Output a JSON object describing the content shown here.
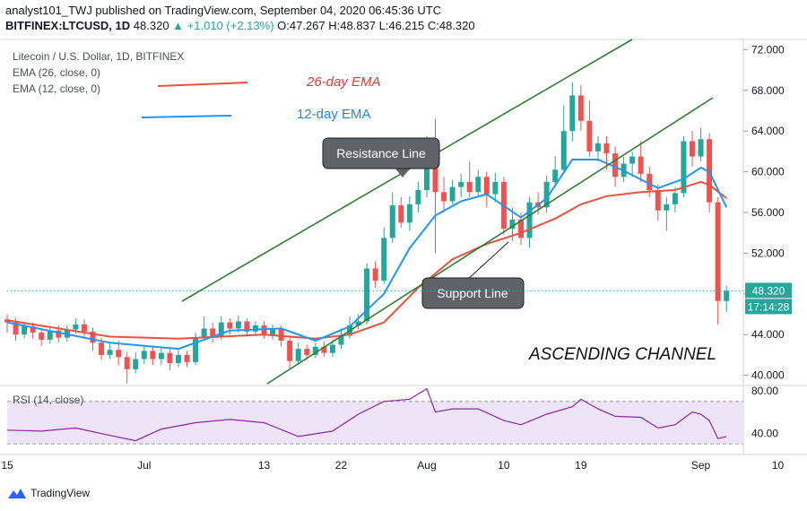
{
  "header": {
    "line1": "analyst101_TWJ published on TradingView.com, September 04, 2020 06:45:36 UTC",
    "symbol": "BITFINEX:LTCUSD, 1D",
    "last": "48.320",
    "change": "+1.010 (+2.13%)",
    "ohlc": "O:47.267 H:48.837 L:46.215 C:48.320"
  },
  "legend": {
    "pair": "Litecoin / U.S. Dollar, 1D, BITFINEX",
    "ema26": "EMA (26, close, 0)",
    "ema12": "EMA (12, close, 0)"
  },
  "annotations": {
    "ema26": "26-day EMA",
    "ema12": "12-day EMA",
    "resistance": "Resistance Line",
    "support": "Support Line",
    "channel": "ASCENDING CHANNEL"
  },
  "price_tag": "48.320",
  "countdown": "17:14:28",
  "rsi_label": "RSI (14, close)",
  "brand": "TradingView",
  "colors": {
    "up": "#26a69a",
    "down": "#ef5350",
    "ema26": "#e8533f",
    "ema12": "#2196f3",
    "channel": "#2e7d32",
    "rsi": "#8e24aa"
  },
  "chart_data": {
    "type": "candlestick",
    "price_axis": {
      "min": 39,
      "max": 73,
      "ticks": [
        40,
        44,
        48,
        52,
        56,
        60,
        64,
        68,
        72
      ]
    },
    "rsi_axis": {
      "min": 20,
      "max": 85,
      "ticks": [
        40,
        80
      ],
      "band": [
        30,
        70
      ]
    },
    "x_ticks": [
      "15",
      "Jul",
      "13",
      "22",
      "Aug",
      "10",
      "19",
      "Sep",
      "10"
    ],
    "x_tick_index": [
      0,
      16,
      30,
      39,
      49,
      58,
      67,
      81,
      90
    ],
    "candles": [
      [
        45.5,
        45.2,
        46.0,
        44.2
      ],
      [
        45.2,
        44.0,
        45.6,
        43.4
      ],
      [
        44.0,
        44.8,
        45.3,
        43.6
      ],
      [
        44.8,
        44.2,
        45.2,
        43.6
      ],
      [
        44.2,
        43.5,
        44.6,
        42.9
      ],
      [
        43.5,
        44.4,
        44.8,
        43.1
      ],
      [
        44.4,
        43.7,
        44.9,
        43.2
      ],
      [
        43.7,
        44.5,
        44.9,
        43.3
      ],
      [
        44.5,
        45.0,
        45.6,
        44.1
      ],
      [
        45.0,
        44.3,
        45.5,
        43.8
      ],
      [
        44.3,
        43.2,
        44.7,
        42.4
      ],
      [
        43.2,
        42.0,
        43.7,
        41.5
      ],
      [
        42.0,
        42.5,
        43.1,
        41.6
      ],
      [
        42.5,
        41.8,
        43.4,
        41.0
      ],
      [
        41.8,
        40.6,
        42.3,
        39.2
      ],
      [
        40.6,
        41.6,
        42.3,
        40.2
      ],
      [
        41.6,
        42.4,
        43.0,
        41.1
      ],
      [
        42.4,
        41.6,
        42.9,
        41.0
      ],
      [
        41.6,
        42.2,
        42.8,
        41.0
      ],
      [
        42.2,
        41.2,
        42.6,
        40.5
      ],
      [
        41.2,
        42.0,
        42.5,
        40.8
      ],
      [
        42.0,
        41.3,
        42.4,
        40.8
      ],
      [
        41.3,
        43.7,
        44.2,
        41.0
      ],
      [
        43.7,
        44.6,
        45.8,
        43.4
      ],
      [
        44.6,
        43.8,
        45.2,
        43.2
      ],
      [
        43.8,
        45.2,
        45.8,
        43.5
      ],
      [
        45.2,
        44.6,
        45.6,
        44.0
      ],
      [
        44.6,
        45.3,
        45.9,
        44.2
      ],
      [
        45.3,
        44.3,
        45.6,
        43.8
      ],
      [
        44.3,
        44.9,
        45.3,
        43.9
      ],
      [
        44.9,
        44.0,
        45.3,
        43.6
      ],
      [
        44.0,
        44.5,
        45.0,
        43.5
      ],
      [
        44.5,
        43.4,
        44.9,
        42.8
      ],
      [
        43.4,
        41.4,
        43.9,
        40.6
      ],
      [
        41.4,
        42.6,
        43.2,
        41.0
      ],
      [
        42.6,
        42.0,
        43.0,
        41.5
      ],
      [
        42.0,
        42.8,
        43.2,
        41.7
      ],
      [
        42.8,
        42.2,
        43.3,
        41.8
      ],
      [
        42.2,
        43.0,
        43.5,
        41.8
      ],
      [
        43.0,
        43.9,
        44.6,
        42.6
      ],
      [
        43.9,
        44.9,
        45.8,
        43.6
      ],
      [
        44.9,
        45.3,
        46.0,
        44.5
      ],
      [
        45.3,
        50.5,
        51.0,
        45.0
      ],
      [
        50.5,
        49.3,
        51.2,
        48.6
      ],
      [
        49.3,
        53.5,
        54.5,
        49.0
      ],
      [
        53.5,
        56.7,
        58.0,
        53.0
      ],
      [
        56.7,
        55.0,
        57.5,
        54.5
      ],
      [
        55.0,
        56.8,
        57.6,
        54.2
      ],
      [
        56.8,
        58.2,
        59.0,
        56.0
      ],
      [
        58.2,
        62.0,
        63.5,
        57.5
      ],
      [
        62.0,
        58.0,
        65.2,
        52.0
      ],
      [
        58.0,
        57.1,
        59.5,
        56.0
      ],
      [
        57.1,
        58.5,
        59.2,
        56.8
      ],
      [
        58.5,
        59.0,
        59.8,
        57.5
      ],
      [
        59.0,
        58.0,
        61.0,
        57.5
      ],
      [
        58.0,
        59.5,
        60.2,
        57.6
      ],
      [
        59.5,
        57.8,
        60.0,
        56.5
      ],
      [
        57.8,
        59.0,
        59.9,
        57.0
      ],
      [
        59.0,
        54.4,
        59.5,
        53.8
      ],
      [
        54.4,
        55.3,
        56.5,
        53.2
      ],
      [
        55.3,
        53.5,
        56.0,
        52.8
      ],
      [
        53.5,
        57.0,
        57.5,
        52.5
      ],
      [
        57.0,
        56.5,
        58.0,
        55.8
      ],
      [
        56.5,
        59.0,
        59.6,
        56.0
      ],
      [
        59.0,
        60.2,
        61.5,
        58.5
      ],
      [
        60.2,
        64.0,
        66.5,
        59.8
      ],
      [
        64.0,
        67.5,
        68.8,
        63.0
      ],
      [
        67.5,
        65.0,
        68.5,
        64.0
      ],
      [
        65.0,
        62.0,
        67.0,
        61.5
      ],
      [
        62.0,
        62.8,
        63.5,
        61.0
      ],
      [
        62.8,
        61.8,
        63.5,
        60.2
      ],
      [
        61.8,
        59.5,
        62.5,
        58.5
      ],
      [
        59.5,
        60.8,
        61.5,
        59.0
      ],
      [
        60.8,
        61.5,
        62.0,
        59.5
      ],
      [
        61.5,
        59.8,
        63.0,
        59.0
      ],
      [
        59.8,
        58.2,
        60.5,
        57.5
      ],
      [
        58.2,
        56.2,
        58.8,
        55.2
      ],
      [
        56.2,
        56.8,
        57.5,
        54.2
      ],
      [
        56.8,
        57.9,
        58.5,
        56.0
      ],
      [
        57.9,
        63.0,
        63.5,
        57.5
      ],
      [
        63.0,
        61.5,
        64.0,
        60.5
      ],
      [
        61.5,
        63.2,
        64.3,
        61.0
      ],
      [
        63.2,
        57.0,
        63.8,
        56.0
      ],
      [
        57.0,
        47.3,
        57.5,
        45.0
      ],
      [
        47.3,
        48.3,
        48.8,
        46.2
      ]
    ],
    "ema26": [
      [
        0,
        45.4
      ],
      [
        12,
        43.8
      ],
      [
        20,
        43.6
      ],
      [
        30,
        44.0
      ],
      [
        36,
        43.6
      ],
      [
        40,
        44.0
      ],
      [
        44,
        45.2
      ],
      [
        48,
        48.6
      ],
      [
        52,
        51.4
      ],
      [
        56,
        52.9
      ],
      [
        60,
        54.0
      ],
      [
        64,
        55.4
      ],
      [
        67,
        56.8
      ],
      [
        70,
        57.6
      ],
      [
        74,
        58.0
      ],
      [
        78,
        58.2
      ],
      [
        81,
        59.0
      ],
      [
        82,
        58.7
      ],
      [
        84,
        57.4
      ]
    ],
    "ema12": [
      [
        0,
        45.2
      ],
      [
        12,
        43.2
      ],
      [
        20,
        42.6
      ],
      [
        26,
        44.4
      ],
      [
        32,
        44.6
      ],
      [
        36,
        43.4
      ],
      [
        40,
        44.8
      ],
      [
        44,
        48.0
      ],
      [
        47,
        52.5
      ],
      [
        50,
        55.7
      ],
      [
        53,
        57.1
      ],
      [
        56,
        57.8
      ],
      [
        60,
        55.5
      ],
      [
        63,
        57.4
      ],
      [
        66,
        61.2
      ],
      [
        69,
        61.2
      ],
      [
        72,
        60.1
      ],
      [
        76,
        58.4
      ],
      [
        79,
        59.3
      ],
      [
        81,
        60.4
      ],
      [
        82,
        60.0
      ],
      [
        84,
        56.5
      ]
    ],
    "rsi": [
      [
        0,
        43
      ],
      [
        4,
        42
      ],
      [
        8,
        45
      ],
      [
        12,
        38
      ],
      [
        15,
        33
      ],
      [
        18,
        44
      ],
      [
        22,
        50
      ],
      [
        26,
        53
      ],
      [
        30,
        50
      ],
      [
        34,
        37
      ],
      [
        38,
        42
      ],
      [
        41,
        58
      ],
      [
        44,
        70
      ],
      [
        47,
        72
      ],
      [
        49,
        82
      ],
      [
        50,
        60
      ],
      [
        52,
        63
      ],
      [
        55,
        63
      ],
      [
        58,
        52
      ],
      [
        60,
        48
      ],
      [
        63,
        58
      ],
      [
        66,
        65
      ],
      [
        67,
        72
      ],
      [
        69,
        63
      ],
      [
        71,
        56
      ],
      [
        74,
        55
      ],
      [
        76,
        45
      ],
      [
        78,
        48
      ],
      [
        80,
        60
      ],
      [
        81,
        58
      ],
      [
        82,
        52
      ],
      [
        83,
        35
      ],
      [
        84,
        37
      ]
    ]
  }
}
